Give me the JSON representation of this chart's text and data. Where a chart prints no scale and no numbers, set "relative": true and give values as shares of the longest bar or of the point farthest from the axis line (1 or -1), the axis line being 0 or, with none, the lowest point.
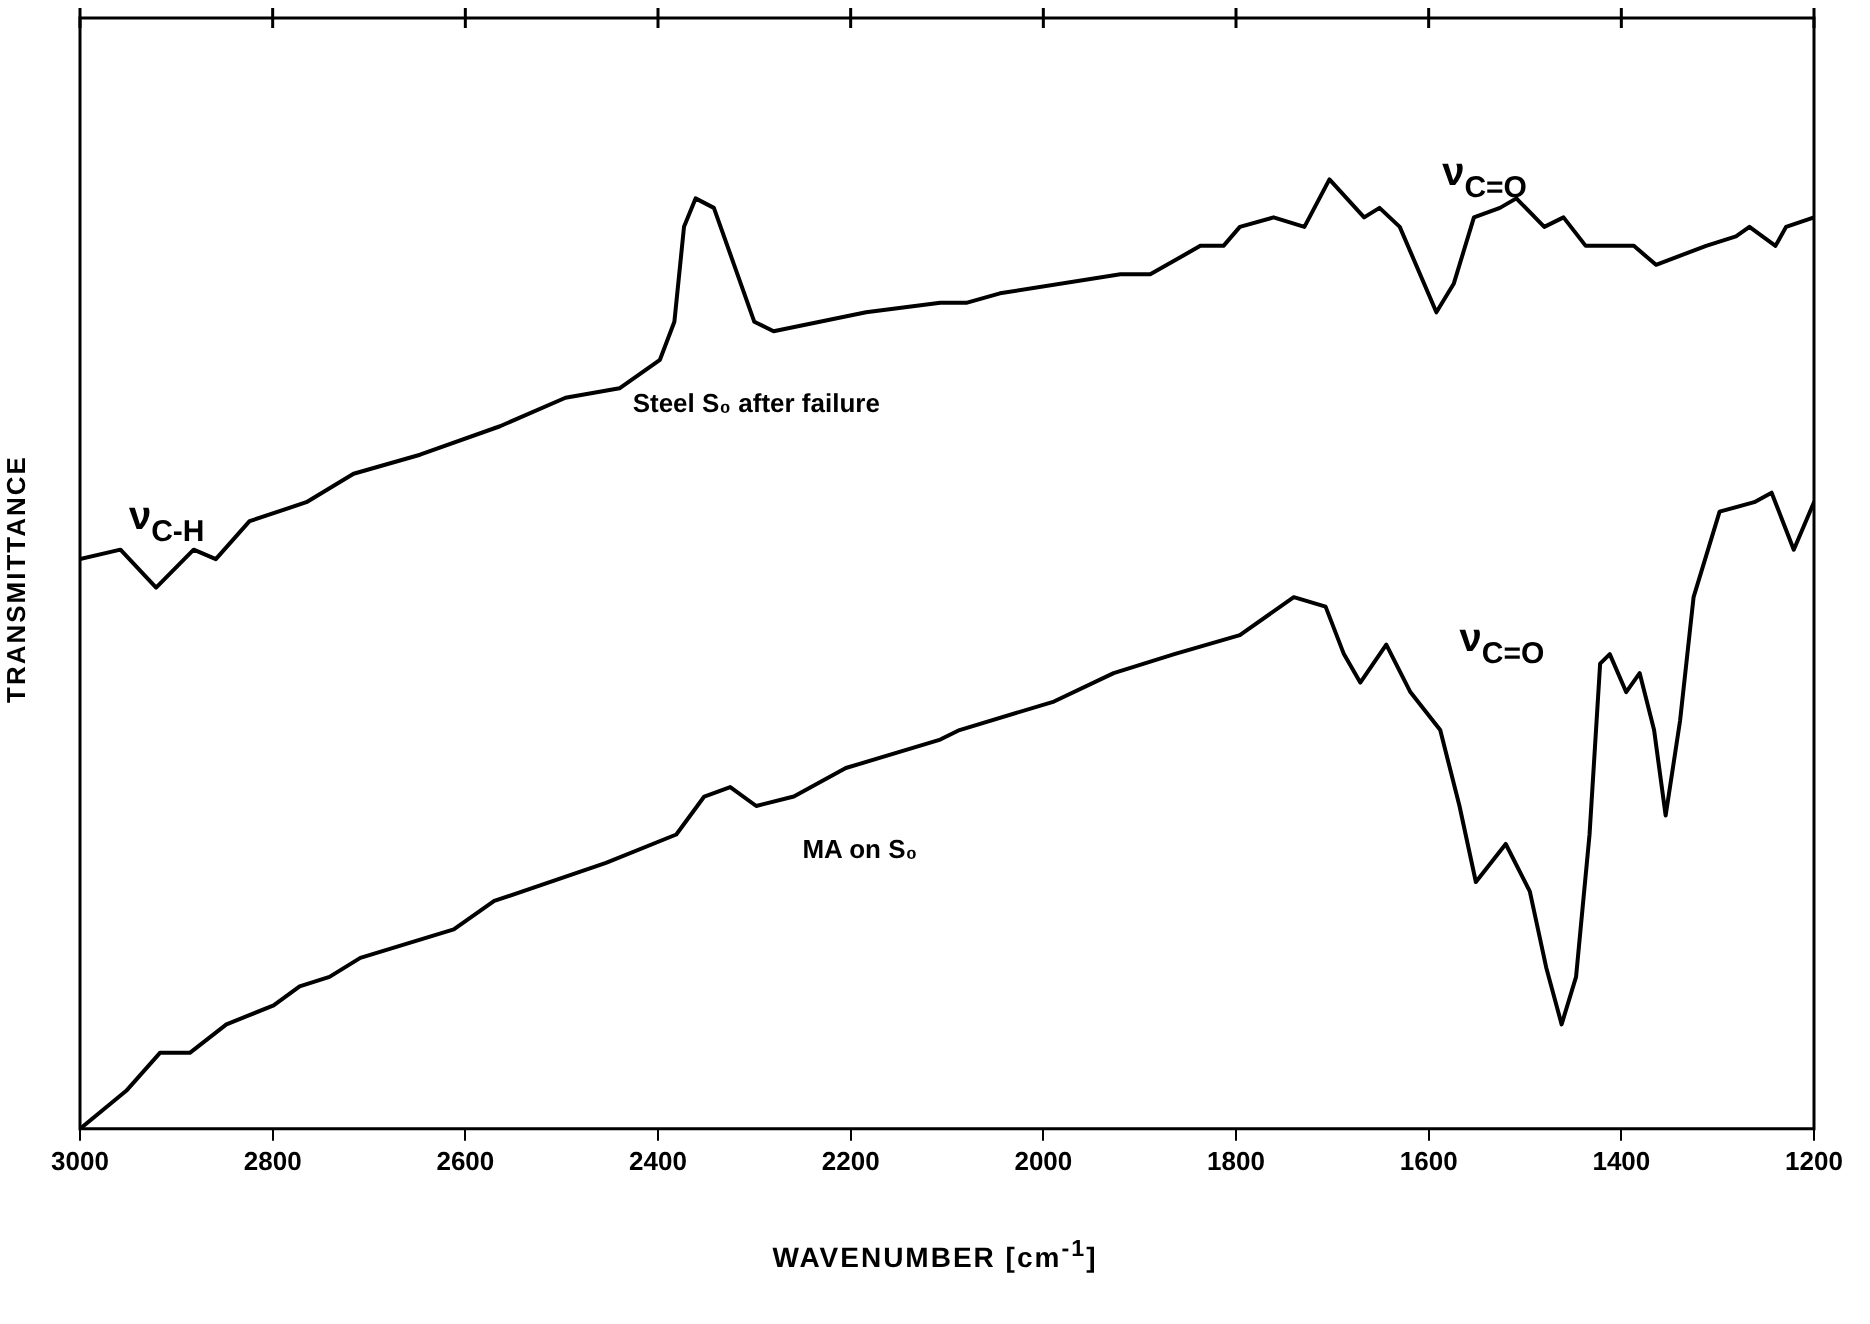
{
  "chart_data": {
    "type": "line",
    "relative": true,
    "xlabel": "WAVENUMBER [cm$^{-1}$]",
    "ylabel": "TRANSMITTANCE",
    "xlim": [
      3000,
      1200
    ],
    "xticks": [
      3000,
      2800,
      2600,
      2400,
      2200,
      2000,
      1800,
      1600,
      1400,
      1200
    ],
    "grid": false,
    "legend": false,
    "series": [
      {
        "name": "Steel S₀ after failure",
        "color": "#000000",
        "x": [
          3000,
          2958,
          2921,
          2882,
          2859,
          2824,
          2765,
          2716,
          2647,
          2564,
          2496,
          2440,
          2398,
          2383,
          2373,
          2361,
          2342,
          2321,
          2300,
          2280,
          2184,
          2107,
          2080,
          2045,
          1920,
          1889,
          1837,
          1813,
          1796,
          1761,
          1729,
          1703,
          1667,
          1651,
          1630,
          1592,
          1574,
          1553,
          1526,
          1509,
          1480,
          1460,
          1437,
          1387,
          1364,
          1312,
          1281,
          1267,
          1240,
          1229,
          1200
        ],
        "values": [
          0.6,
          0.61,
          0.57,
          0.61,
          0.6,
          0.64,
          0.66,
          0.69,
          0.71,
          0.74,
          0.77,
          0.78,
          0.81,
          0.85,
          0.95,
          0.98,
          0.97,
          0.91,
          0.85,
          0.84,
          0.86,
          0.87,
          0.87,
          0.88,
          0.9,
          0.9,
          0.93,
          0.93,
          0.95,
          0.96,
          0.95,
          1.0,
          0.96,
          0.97,
          0.95,
          0.86,
          0.89,
          0.96,
          0.97,
          0.98,
          0.95,
          0.96,
          0.93,
          0.93,
          0.91,
          0.93,
          0.94,
          0.95,
          0.93,
          0.95,
          0.96
        ]
      },
      {
        "name": "MA on S₀",
        "color": "#000000",
        "x": [
          3000,
          2952,
          2917,
          2886,
          2848,
          2799,
          2772,
          2741,
          2709,
          2612,
          2570,
          2454,
          2381,
          2352,
          2325,
          2298,
          2259,
          2205,
          2107,
          2087,
          1989,
          1927,
          1864,
          1796,
          1740,
          1707,
          1688,
          1671,
          1644,
          1619,
          1588,
          1568,
          1551,
          1520,
          1495,
          1478,
          1462,
          1447,
          1433,
          1422,
          1412,
          1395,
          1381,
          1366,
          1354,
          1339,
          1325,
          1298,
          1262,
          1244,
          1221,
          1200
        ],
        "values": [
          0,
          0.04,
          0.08,
          0.08,
          0.11,
          0.13,
          0.15,
          0.16,
          0.18,
          0.21,
          0.24,
          0.28,
          0.31,
          0.35,
          0.36,
          0.34,
          0.35,
          0.38,
          0.41,
          0.42,
          0.45,
          0.48,
          0.5,
          0.52,
          0.56,
          0.55,
          0.5,
          0.47,
          0.51,
          0.46,
          0.42,
          0.34,
          0.26,
          0.3,
          0.25,
          0.17,
          0.11,
          0.16,
          0.31,
          0.49,
          0.5,
          0.46,
          0.48,
          0.42,
          0.33,
          0.43,
          0.56,
          0.65,
          0.66,
          0.67,
          0.61,
          0.66
        ]
      }
    ],
    "annotations": [
      "ν$_{C-H}$",
      "ν$_{C=O}$",
      "ν$_{C=O}$"
    ]
  }
}
